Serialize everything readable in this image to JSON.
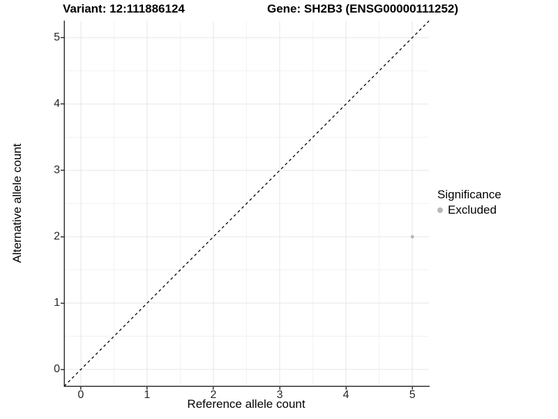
{
  "titles": {
    "variant": "Variant: 12:111886124",
    "gene": "Gene: SH2B3 (ENSG00000111252)"
  },
  "chart_data": {
    "type": "scatter",
    "title_left": "Variant: 12:111886124",
    "title_right": "Gene: SH2B3 (ENSG00000111252)",
    "xlabel": "Reference allele count",
    "ylabel": "Alternative allele count",
    "xlim": [
      -0.25,
      5.25
    ],
    "ylim": [
      -0.25,
      5.25
    ],
    "x_ticks": [
      0,
      1,
      2,
      3,
      4,
      5
    ],
    "y_ticks": [
      0,
      1,
      2,
      3,
      4,
      5
    ],
    "x_minor_ticks": [
      0.5,
      1.5,
      2.5,
      3.5,
      4.5
    ],
    "y_minor_ticks": [
      0.5,
      1.5,
      2.5,
      3.5,
      4.5
    ],
    "grid": true,
    "series": [
      {
        "name": "Excluded",
        "color": "#b9b9b9",
        "point_radius": 2.5,
        "points": [
          {
            "x": 5,
            "y": 2
          }
        ]
      }
    ],
    "reference_line": {
      "type": "identity y=x",
      "style": "dashed",
      "color": "#000000"
    },
    "legend": {
      "position": "right",
      "title": "Significance",
      "entries": [
        {
          "label": "Excluded",
          "color": "#b9b9b9"
        }
      ]
    }
  },
  "colors": {
    "background": "#ffffff",
    "axis_line": "#333333",
    "tick_label": "#262626",
    "grid_major": "#e6e6e6",
    "grid_minor": "#f2f2f2",
    "point": "#b9b9b9",
    "reference_line": "#000000"
  }
}
